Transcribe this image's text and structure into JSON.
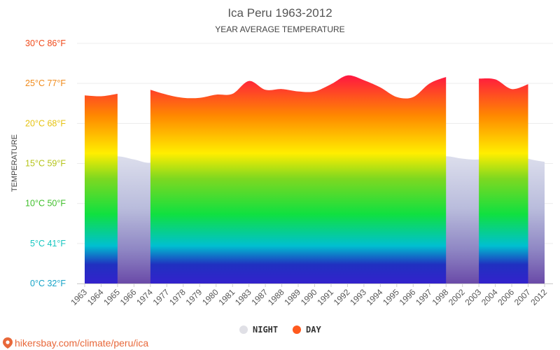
{
  "chart_data": {
    "type": "area",
    "title": "Ica Peru 1963-2012",
    "subtitle": "YEAR AVERAGE TEMPERATURE",
    "ylabel": "TEMPERATURE",
    "ylim": [
      0,
      30
    ],
    "grid": true,
    "legend_position": "bottom-center",
    "y_ticks": [
      {
        "value": 0,
        "label": "0°C 32°F",
        "color": "#15a3c7"
      },
      {
        "value": 5,
        "label": "5°C 41°F",
        "color": "#16c6c0"
      },
      {
        "value": 10,
        "label": "10°C 50°F",
        "color": "#3fbf2a"
      },
      {
        "value": 15,
        "label": "15°C 59°F",
        "color": "#b5c41a"
      },
      {
        "value": 20,
        "label": "20°C 68°F",
        "color": "#e6c312"
      },
      {
        "value": 25,
        "label": "25°C 77°F",
        "color": "#f08a1a"
      },
      {
        "value": 30,
        "label": "30°C 86°F",
        "color": "#f04a1a"
      }
    ],
    "categories": [
      "1963",
      "1964",
      "1965",
      "1966",
      "1974",
      "1977",
      "1978",
      "1979",
      "1980",
      "1981",
      "1983",
      "1987",
      "1988",
      "1989",
      "1990",
      "1991",
      "1992",
      "1993",
      "1994",
      "1995",
      "1996",
      "1997",
      "1998",
      "2002",
      "2003",
      "2004",
      "2006",
      "2007",
      "2012"
    ],
    "series": [
      {
        "name": "NIGHT",
        "color": "#e0e0e6",
        "values": [
          15.5,
          15.6,
          15.9,
          15.5,
          15.1,
          16.1,
          16.3,
          16.4,
          16.6,
          15.9,
          16.3,
          17.2,
          16.6,
          16.1,
          16.1,
          16.3,
          16.1,
          15.9,
          15.8,
          15.1,
          14.8,
          15.6,
          15.9,
          15.6,
          15.5,
          16.0,
          16.5,
          15.6,
          15.2
        ]
      },
      {
        "name": "DAY",
        "color": "#ff5a1e",
        "values": [
          23.5,
          23.4,
          23.7,
          null,
          24.2,
          23.6,
          23.2,
          23.2,
          23.6,
          23.7,
          25.3,
          24.2,
          24.3,
          24.0,
          24.0,
          24.9,
          26.0,
          25.4,
          24.5,
          23.3,
          23.3,
          25.0,
          25.8,
          null,
          25.6,
          25.5,
          24.3,
          24.9,
          null
        ]
      }
    ]
  },
  "footer": {
    "source_text": "hikersbay.com/climate/peru/ica",
    "pin_color": "#e8683a"
  }
}
